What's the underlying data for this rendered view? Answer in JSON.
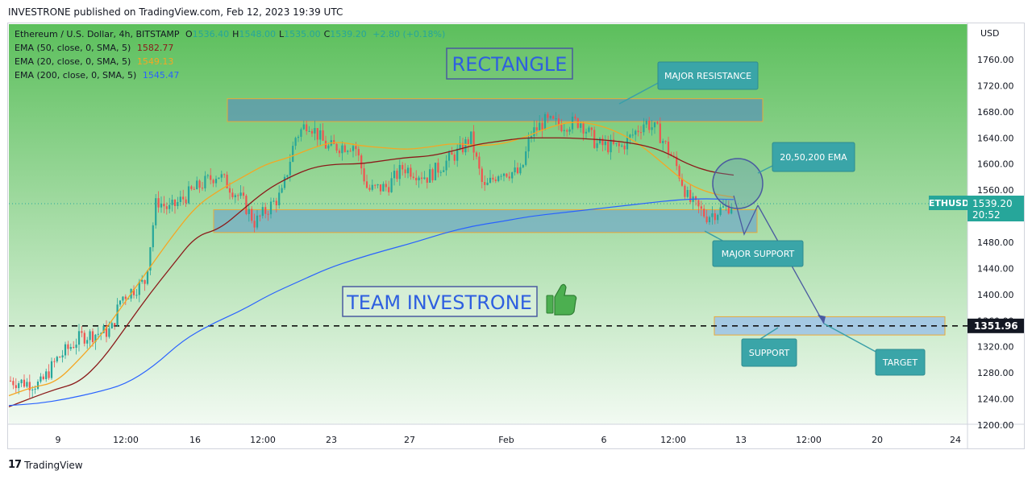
{
  "header": {
    "published": "INVESTRONE published on TradingView.com, Feb 12, 2023 19:39 UTC"
  },
  "legend": {
    "title": "Ethereum / U.S. Dollar, 4h, BITSTAMP",
    "ohlc": [
      {
        "k": "O",
        "v": "1536.40"
      },
      {
        "k": "H",
        "v": "1548.00"
      },
      {
        "k": "L",
        "v": "1535.00"
      },
      {
        "k": "C",
        "v": "1539.20"
      }
    ],
    "change": "+2.80 (+0.18%)",
    "ema": [
      {
        "label": "EMA (50, close, 0, SMA, 5)",
        "value": "1582.77",
        "color": "#8b1a1a"
      },
      {
        "label": "EMA (20, close, 0, SMA, 5)",
        "value": "1549.13",
        "color": "#f5a623"
      },
      {
        "label": "EMA (200, close, 0, SMA, 5)",
        "value": "1545.47",
        "color": "#2962ff"
      }
    ]
  },
  "colors": {
    "up": "#26a69a",
    "down": "#ef5350",
    "accent": "#26a69a"
  },
  "chart_data": {
    "type": "line",
    "currency": "USD",
    "symbol_label": "ETHUSD",
    "last_price": "1539.20",
    "countdown": "20:52",
    "line_label": "1351.96",
    "ylim": [
      1190,
      1790
    ],
    "yticks": [
      1200,
      1240,
      1280,
      1320,
      1360,
      1400,
      1440,
      1480,
      1520,
      1560,
      1600,
      1640,
      1680,
      1720,
      1760
    ],
    "xtick_labels": [
      "9",
      "12:00",
      "16",
      "12:00",
      "23",
      "27",
      "Feb",
      "6",
      "12:00",
      "13",
      "12:00",
      "20",
      "24"
    ],
    "series": [
      {
        "name": "EMA (20, close, 0, SMA, 5)",
        "color": "#f5a623",
        "values": [
          1245,
          1258,
          1265,
          1300,
          1340,
          1390,
          1440,
          1490,
          1535,
          1560,
          1580,
          1600,
          1610,
          1625,
          1635,
          1628,
          1625,
          1622,
          1626,
          1632,
          1628,
          1630,
          1640,
          1655,
          1665,
          1662,
          1650,
          1630,
          1600,
          1570,
          1555,
          1549
        ]
      },
      {
        "name": "EMA (50, close, 0, SMA, 5)",
        "color": "#8b1a1a",
        "values": [
          1228,
          1242,
          1255,
          1265,
          1300,
          1350,
          1400,
          1445,
          1490,
          1500,
          1530,
          1560,
          1580,
          1595,
          1600,
          1600,
          1605,
          1610,
          1612,
          1620,
          1630,
          1635,
          1640,
          1640,
          1640,
          1638,
          1635,
          1630,
          1620,
          1600,
          1588,
          1583
        ]
      },
      {
        "name": "EMA (200, close, 0, SMA, 5)",
        "color": "#2962ff",
        "values": [
          1230,
          1233,
          1240,
          1250,
          1262,
          1290,
          1330,
          1355,
          1375,
          1400,
          1420,
          1440,
          1455,
          1468,
          1480,
          1494,
          1505,
          1512,
          1520,
          1525,
          1530,
          1535,
          1540,
          1545,
          1547,
          1545.5
        ]
      }
    ],
    "levels": {
      "dashed_support": 1351.96
    },
    "annotations": {
      "rectangle_title": "RECTANGLE",
      "team": "TEAM INVESTRONE",
      "callouts": [
        {
          "id": "resistance",
          "text": "MAJOR RESISTANCE"
        },
        {
          "id": "ema",
          "text": "20,50,200 EMA"
        },
        {
          "id": "major-support",
          "text": "MAJOR SUPPORT"
        },
        {
          "id": "support",
          "text": "SUPPORT"
        },
        {
          "id": "target",
          "text": "TARGET"
        }
      ]
    }
  },
  "footer": {
    "brand": "TradingView"
  }
}
